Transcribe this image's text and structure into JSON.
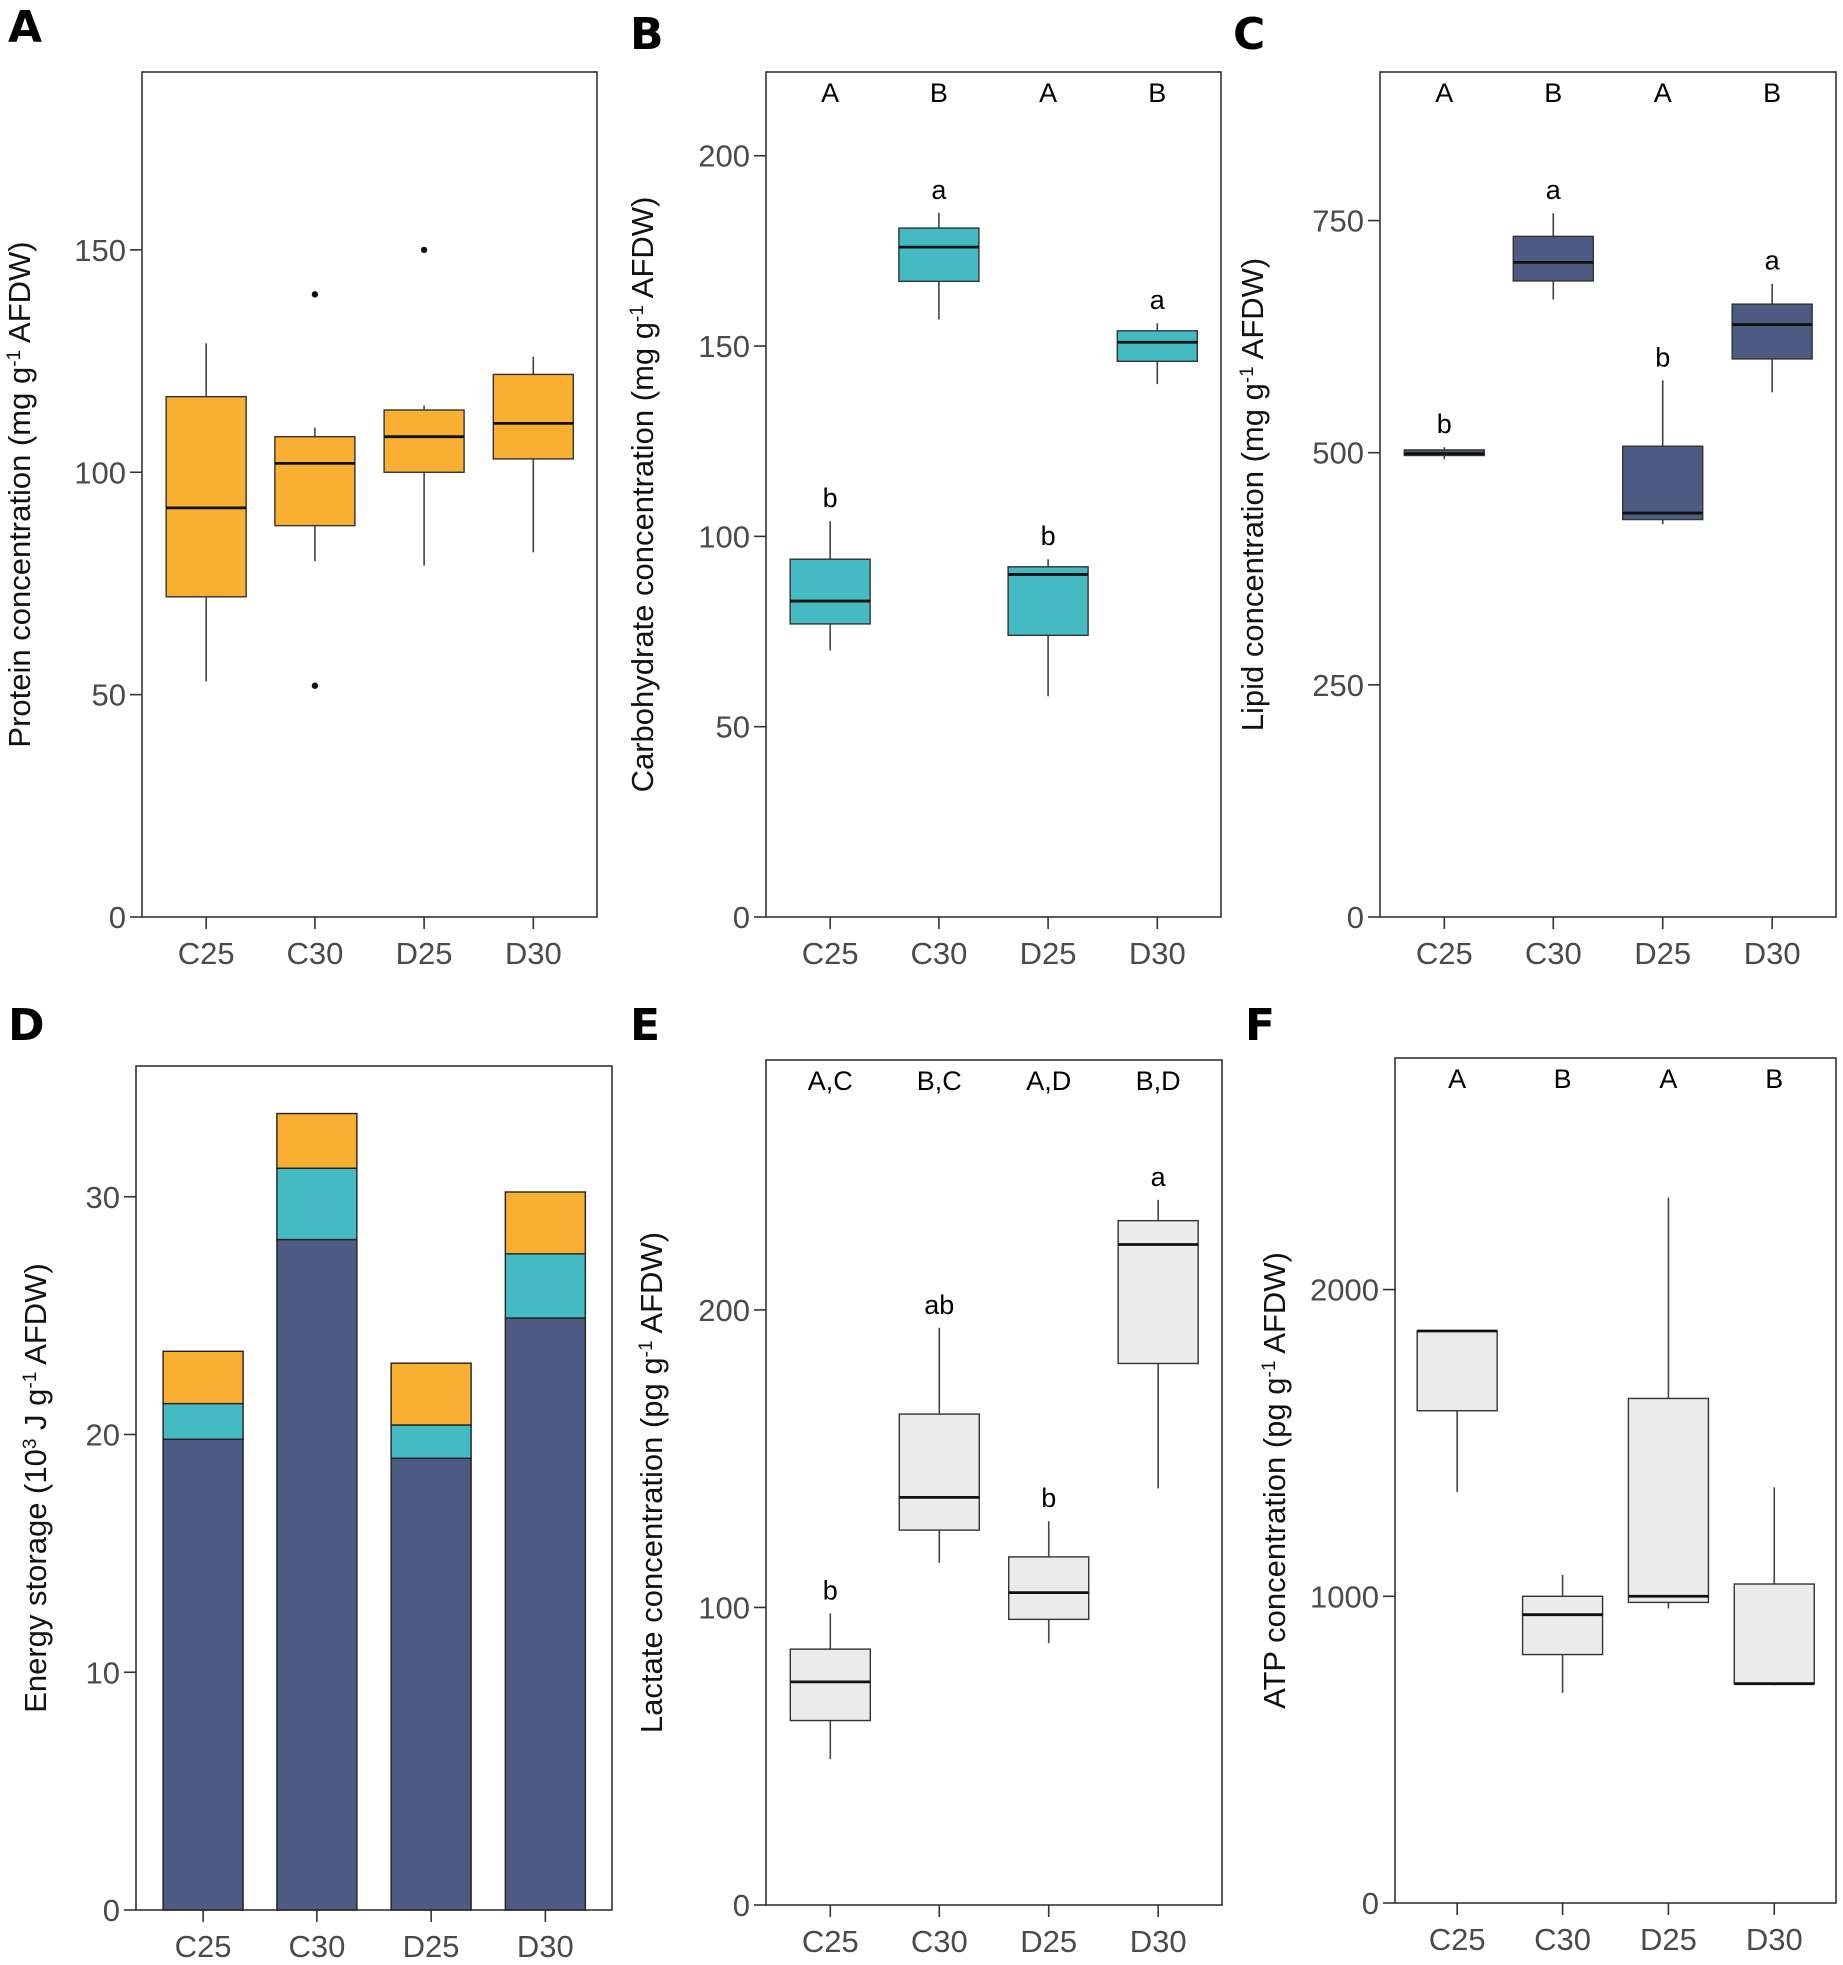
{
  "chart_data": [
    {
      "panel": "A",
      "type": "box",
      "ylabel": "Protein concentration (mg g-1 AFDW)",
      "ylabel_parts": {
        "before": "Protein concentration (mg g",
        "sup": "-1",
        "after": " AFDW)"
      },
      "ylim": [
        0,
        190
      ],
      "yticks": [
        0,
        50,
        100,
        150
      ],
      "categories": [
        "C25",
        "C30",
        "D25",
        "D30"
      ],
      "color": "#F8AF32",
      "boxes": [
        {
          "min": 53,
          "q1": 72,
          "median": 92,
          "q3": 117,
          "max": 129,
          "outliers": []
        },
        {
          "min": 80,
          "q1": 88,
          "median": 102,
          "q3": 108,
          "max": 110,
          "outliers": [
            52,
            140
          ]
        },
        {
          "min": 79,
          "q1": 100,
          "median": 108,
          "q3": 114,
          "max": 115,
          "outliers": [
            150
          ]
        },
        {
          "min": 82,
          "q1": 103,
          "median": 111,
          "q3": 122,
          "max": 126,
          "outliers": []
        }
      ],
      "group_letters": [],
      "sig_letters": []
    },
    {
      "panel": "B",
      "type": "box",
      "ylabel": "Carbohydrate concentration (mg g-1 AFDW)",
      "ylabel_parts": {
        "before": "Carbohydrate concentration (mg g",
        "sup": "-1",
        "after": " AFDW)"
      },
      "ylim": [
        0,
        222
      ],
      "yticks": [
        0,
        50,
        100,
        150,
        200
      ],
      "categories": [
        "C25",
        "C30",
        "D25",
        "D30"
      ],
      "color": "#44BBC2",
      "boxes": [
        {
          "min": 70,
          "q1": 77,
          "median": 83,
          "q3": 94,
          "max": 104,
          "outliers": []
        },
        {
          "min": 157,
          "q1": 167,
          "median": 176,
          "q3": 181,
          "max": 185,
          "outliers": []
        },
        {
          "min": 58,
          "q1": 74,
          "median": 90,
          "q3": 92,
          "max": 94,
          "outliers": []
        },
        {
          "min": 140,
          "q1": 146,
          "median": 151,
          "q3": 154,
          "max": 156,
          "outliers": []
        }
      ],
      "group_letters": [
        "A",
        "B",
        "A",
        "B"
      ],
      "sig_letters": [
        "b",
        "a",
        "b",
        "a"
      ]
    },
    {
      "panel": "C",
      "type": "box",
      "ylabel": "Lipid concentration (mg g-1 AFDW)",
      "ylabel_parts": {
        "before": "Lipid concentration (mg g",
        "sup": "-1",
        "after": " AFDW)"
      },
      "ylim": [
        0,
        910
      ],
      "yticks": [
        0,
        250,
        500,
        750
      ],
      "categories": [
        "C25",
        "C30",
        "D25",
        "D30"
      ],
      "color": "#4D5B82",
      "boxes": [
        {
          "min": 493,
          "q1": 497,
          "median": 499,
          "q3": 503,
          "max": 506,
          "outliers": []
        },
        {
          "min": 665,
          "q1": 685,
          "median": 705,
          "q3": 733,
          "max": 758,
          "outliers": []
        },
        {
          "min": 423,
          "q1": 428,
          "median": 435,
          "q3": 507,
          "max": 578,
          "outliers": []
        },
        {
          "min": 565,
          "q1": 601,
          "median": 638,
          "q3": 660,
          "max": 682,
          "outliers": []
        }
      ],
      "group_letters": [
        "A",
        "B",
        "A",
        "B"
      ],
      "sig_letters": [
        "b",
        "a",
        "b",
        "a"
      ]
    },
    {
      "panel": "D",
      "type": "bar",
      "stacked": true,
      "ylabel": "Energy storage (103 J g-1 AFDW)",
      "ylabel_parts": {
        "before": "Energy storage (10",
        "sup": "3",
        "middle": " J g",
        "sup2": "-1",
        "after": " AFDW)"
      },
      "ylim": [
        0,
        35.5
      ],
      "yticks": [
        0,
        10,
        20,
        30
      ],
      "categories": [
        "C25",
        "C30",
        "D25",
        "D30"
      ],
      "series": [
        {
          "color": "#4D5B82",
          "values": [
            19.8,
            28.2,
            19.0,
            24.9
          ]
        },
        {
          "color": "#44BBC2",
          "values": [
            1.5,
            3.0,
            1.4,
            2.7
          ]
        },
        {
          "color": "#F8AF32",
          "values": [
            2.2,
            2.3,
            2.6,
            2.6
          ]
        }
      ]
    },
    {
      "panel": "E",
      "type": "box",
      "ylabel": "Lactate concentration (pg g-1 AFDW)",
      "ylabel_parts": {
        "before": "Lactate concentration (pg g",
        "sup": "-1",
        "after": " AFDW)"
      },
      "ylim": [
        0,
        284
      ],
      "yticks": [
        0,
        100,
        200
      ],
      "categories": [
        "C25",
        "C30",
        "D25",
        "D30"
      ],
      "color": "#EBEBEB",
      "boxes": [
        {
          "min": 49,
          "q1": 62,
          "median": 75,
          "q3": 86,
          "max": 98,
          "outliers": []
        },
        {
          "min": 115,
          "q1": 126,
          "median": 137,
          "q3": 165,
          "max": 194,
          "outliers": []
        },
        {
          "min": 88,
          "q1": 96,
          "median": 105,
          "q3": 117,
          "max": 129,
          "outliers": []
        },
        {
          "min": 140,
          "q1": 182,
          "median": 222,
          "q3": 230,
          "max": 237,
          "outliers": []
        }
      ],
      "group_letters": [
        "A,C",
        "B,C",
        "A,D",
        "B,D"
      ],
      "sig_letters": [
        "b",
        "ab",
        "b",
        "a"
      ]
    },
    {
      "panel": "F",
      "type": "box",
      "ylabel": "ATP concentration (pg g-1 AFDW)",
      "ylabel_parts": {
        "before": "ATP concentration (pg g",
        "sup": "-1",
        "after": " AFDW)"
      },
      "ylim": [
        0,
        2755
      ],
      "yticks": [
        0,
        1000,
        2000
      ],
      "categories": [
        "C25",
        "C30",
        "D25",
        "D30"
      ],
      "color": "#EBEBEB",
      "boxes": [
        {
          "min": 1340,
          "q1": 1605,
          "median": 1865,
          "q3": 1865,
          "max": 1865,
          "outliers": []
        },
        {
          "min": 685,
          "q1": 810,
          "median": 940,
          "q3": 1000,
          "max": 1070,
          "outliers": []
        },
        {
          "min": 960,
          "q1": 980,
          "median": 1000,
          "q3": 1645,
          "max": 2300,
          "outliers": []
        },
        {
          "min": 710,
          "q1": 715,
          "median": 715,
          "q3": 1040,
          "max": 1355,
          "outliers": []
        }
      ],
      "group_letters": [
        "A",
        "B",
        "A",
        "B"
      ],
      "sig_letters": []
    }
  ]
}
